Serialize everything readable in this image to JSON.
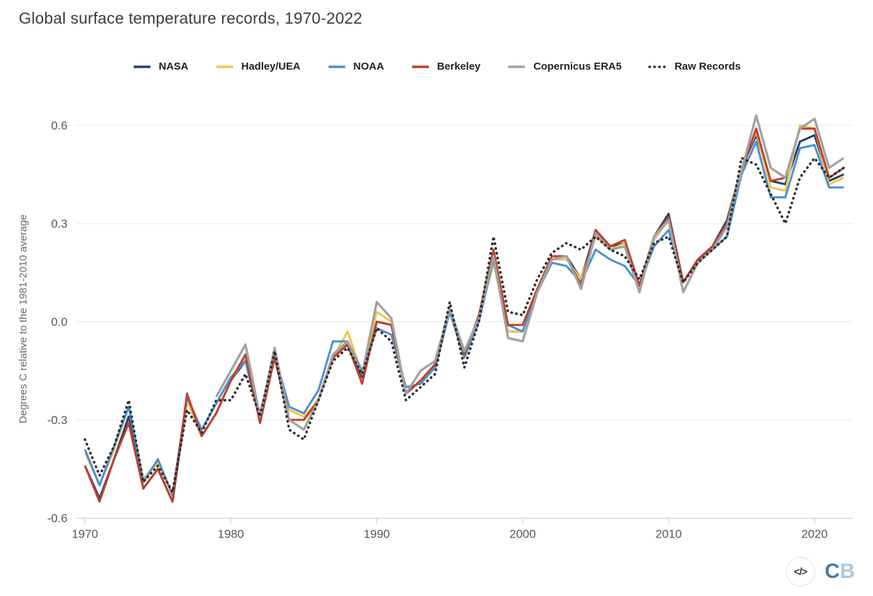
{
  "title": "Global surface temperature records, 1970-2022",
  "footer": {
    "embed_glyph": "</>",
    "logo_c": "C",
    "logo_b": "B"
  },
  "colors": {
    "axis": "#ccd4ec",
    "grid": "#e7e7e7",
    "tick_text": "#575757"
  },
  "chart_data": {
    "type": "line",
    "title": "Global surface temperature records, 1970-2022",
    "xlabel": "",
    "ylabel": "Degrees C relative to the 1981-2010 average",
    "xlim": [
      1969.4,
      2022.7
    ],
    "ylim": [
      -0.65,
      0.72
    ],
    "grid": true,
    "legend_position": "top",
    "xticks": [
      1970,
      1980,
      1990,
      2000,
      2010,
      2020
    ],
    "yticks": [
      0.6,
      0.3,
      0.0,
      -0.3,
      -0.6
    ],
    "x": [
      1970,
      1971,
      1972,
      1973,
      1974,
      1975,
      1976,
      1977,
      1978,
      1979,
      1980,
      1981,
      1982,
      1983,
      1984,
      1985,
      1986,
      1987,
      1988,
      1989,
      1990,
      1991,
      1992,
      1993,
      1994,
      1995,
      1996,
      1997,
      1998,
      1999,
      2000,
      2001,
      2002,
      2003,
      2004,
      2005,
      2006,
      2007,
      2008,
      2009,
      2010,
      2011,
      2012,
      2013,
      2014,
      2015,
      2016,
      2017,
      2018,
      2019,
      2020,
      2021,
      2022
    ],
    "series": [
      {
        "name": "NASA",
        "color": "#20406b",
        "style": "solid",
        "values": [
          -0.44,
          -0.54,
          -0.42,
          -0.29,
          -0.51,
          -0.45,
          -0.55,
          -0.24,
          -0.35,
          -0.28,
          -0.18,
          -0.12,
          -0.3,
          -0.1,
          -0.3,
          -0.3,
          -0.24,
          -0.11,
          -0.07,
          -0.17,
          0.0,
          -0.01,
          -0.22,
          -0.18,
          -0.13,
          0.04,
          -0.1,
          0.01,
          0.2,
          -0.03,
          -0.03,
          0.1,
          0.19,
          0.2,
          0.13,
          0.28,
          0.23,
          0.24,
          0.11,
          0.26,
          0.33,
          0.12,
          0.19,
          0.23,
          0.31,
          0.47,
          0.57,
          0.43,
          0.42,
          0.55,
          0.57,
          0.43,
          0.45
        ]
      },
      {
        "name": "Hadley/UEA",
        "color": "#eec54d",
        "style": "solid",
        "values": [
          -0.4,
          -0.5,
          -0.39,
          -0.26,
          -0.48,
          -0.43,
          -0.53,
          -0.24,
          -0.35,
          -0.28,
          -0.18,
          -0.11,
          -0.29,
          -0.1,
          -0.27,
          -0.29,
          -0.24,
          -0.11,
          -0.03,
          -0.16,
          0.03,
          0.0,
          -0.22,
          -0.18,
          -0.13,
          0.04,
          -0.1,
          0.01,
          0.18,
          -0.03,
          -0.03,
          0.1,
          0.19,
          0.19,
          0.13,
          0.26,
          0.22,
          0.24,
          0.11,
          0.25,
          0.31,
          0.12,
          0.19,
          0.22,
          0.3,
          0.47,
          0.58,
          0.41,
          0.4,
          0.6,
          0.59,
          0.42,
          0.44
        ]
      },
      {
        "name": "NOAA",
        "color": "#4b90d4",
        "style": "solid",
        "values": [
          -0.39,
          -0.5,
          -0.38,
          -0.26,
          -0.49,
          -0.42,
          -0.53,
          -0.23,
          -0.33,
          -0.25,
          -0.17,
          -0.12,
          -0.28,
          -0.1,
          -0.26,
          -0.28,
          -0.21,
          -0.06,
          -0.06,
          -0.15,
          -0.02,
          -0.04,
          -0.2,
          -0.19,
          -0.14,
          0.03,
          -0.11,
          0.0,
          0.19,
          -0.01,
          -0.03,
          0.09,
          0.18,
          0.17,
          0.12,
          0.22,
          0.19,
          0.17,
          0.11,
          0.23,
          0.28,
          0.12,
          0.19,
          0.22,
          0.26,
          0.45,
          0.55,
          0.38,
          0.38,
          0.53,
          0.54,
          0.41,
          0.41
        ]
      },
      {
        "name": "Berkeley",
        "color": "#bf402b",
        "style": "solid",
        "values": [
          -0.44,
          -0.55,
          -0.42,
          -0.31,
          -0.51,
          -0.45,
          -0.55,
          -0.22,
          -0.35,
          -0.28,
          -0.18,
          -0.1,
          -0.31,
          -0.11,
          -0.3,
          -0.3,
          -0.24,
          -0.11,
          -0.07,
          -0.19,
          0.0,
          -0.01,
          -0.22,
          -0.18,
          -0.13,
          0.04,
          -0.1,
          0.02,
          0.22,
          -0.01,
          -0.01,
          0.1,
          0.2,
          0.2,
          0.11,
          0.28,
          0.23,
          0.25,
          0.11,
          0.26,
          0.32,
          0.12,
          0.19,
          0.23,
          0.3,
          0.46,
          0.59,
          0.43,
          0.44,
          0.59,
          0.59,
          0.44,
          0.47
        ]
      },
      {
        "name": "Copernicus ERA5",
        "color": "#a2a2a2",
        "style": "solid",
        "values": [
          null,
          null,
          null,
          null,
          null,
          null,
          null,
          null,
          null,
          -0.23,
          -0.15,
          -0.07,
          -0.29,
          -0.08,
          -0.3,
          -0.33,
          -0.24,
          -0.1,
          -0.06,
          -0.16,
          0.06,
          0.01,
          -0.22,
          -0.15,
          -0.12,
          0.04,
          -0.09,
          0.01,
          0.2,
          -0.05,
          -0.06,
          0.09,
          0.19,
          0.2,
          0.1,
          0.27,
          0.22,
          0.23,
          0.09,
          0.26,
          0.31,
          0.09,
          0.18,
          0.22,
          0.29,
          0.46,
          0.63,
          0.47,
          0.44,
          0.59,
          0.62,
          0.47,
          0.5
        ]
      },
      {
        "name": "Raw Records",
        "color": "#2e2e2e",
        "style": "dotted",
        "values": [
          -0.36,
          -0.47,
          -0.38,
          -0.24,
          -0.49,
          -0.44,
          -0.52,
          -0.27,
          -0.34,
          -0.24,
          -0.24,
          -0.16,
          -0.29,
          -0.09,
          -0.33,
          -0.36,
          -0.24,
          -0.12,
          -0.08,
          -0.16,
          -0.02,
          -0.06,
          -0.24,
          -0.2,
          -0.16,
          0.06,
          -0.14,
          0.0,
          0.26,
          0.03,
          0.02,
          0.13,
          0.21,
          0.24,
          0.22,
          0.26,
          0.22,
          0.2,
          0.13,
          0.24,
          0.26,
          0.12,
          0.18,
          0.22,
          0.26,
          0.5,
          0.48,
          0.39,
          0.3,
          0.44,
          0.5,
          0.44,
          0.47
        ]
      }
    ]
  }
}
